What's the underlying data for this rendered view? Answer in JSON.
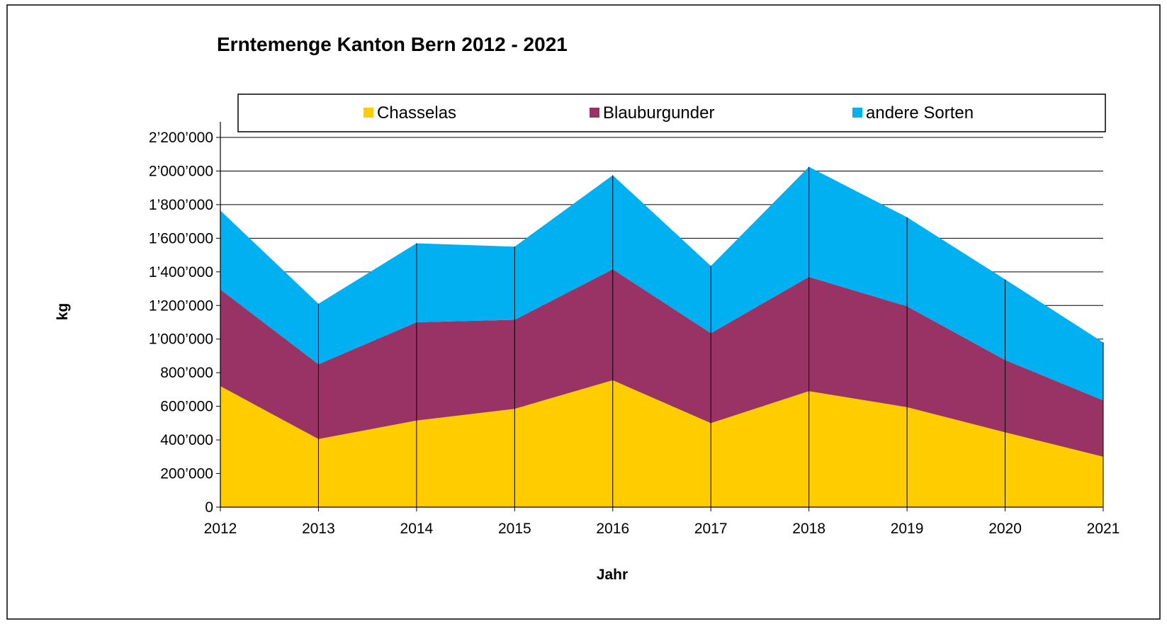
{
  "chart_data": {
    "type": "area",
    "stacked": true,
    "title": "Erntemenge Kanton Bern 2012 - 2021",
    "xlabel": "Jahr",
    "ylabel": "kg",
    "categories": [
      "2012",
      "2013",
      "2014",
      "2015",
      "2016",
      "2017",
      "2018",
      "2019",
      "2020",
      "2021"
    ],
    "ylim": [
      0,
      2200000
    ],
    "yticks": [
      0,
      200000,
      400000,
      600000,
      800000,
      1000000,
      1200000,
      1400000,
      1600000,
      1800000,
      2000000,
      2200000
    ],
    "ytick_labels": [
      "0",
      "200’000",
      "400’000",
      "600’000",
      "800’000",
      "1’000’000",
      "1’200’000",
      "1’400’000",
      "1’600’000",
      "1’800’000",
      "2’000’000",
      "2’200’000"
    ],
    "grid": true,
    "legend_position": "top",
    "series": [
      {
        "name": "Chasselas",
        "color": "#FFCC00",
        "values": [
          720000,
          405000,
          515000,
          585000,
          755000,
          500000,
          690000,
          595000,
          445000,
          300000
        ]
      },
      {
        "name": "Blauburgunder",
        "color": "#993366",
        "values": [
          575000,
          445000,
          585000,
          530000,
          660000,
          535000,
          680000,
          600000,
          430000,
          335000
        ]
      },
      {
        "name": "andere Sorten",
        "color": "#00B0F0",
        "values": [
          470000,
          360000,
          470000,
          435000,
          560000,
          400000,
          655000,
          530000,
          480000,
          345000
        ]
      }
    ]
  }
}
